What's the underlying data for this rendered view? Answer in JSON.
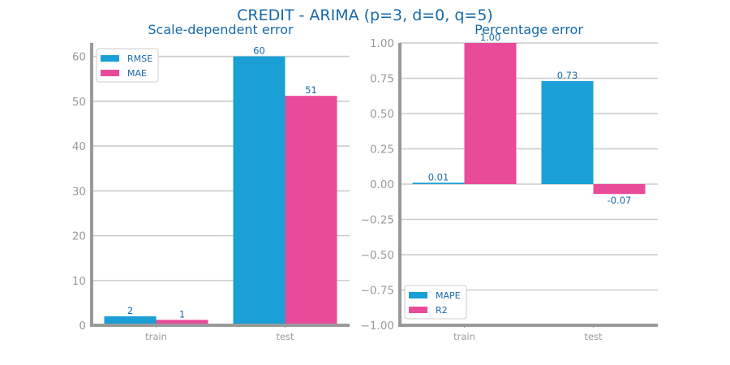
{
  "figure": {
    "title": "CREDIT - ARIMA (p=3, d=0, q=5)"
  },
  "colors": {
    "title": "#1769aa",
    "axis_spine": "#999999",
    "grid": "#cccccc",
    "tick_text": "#999999",
    "bar_label": "#1769aa",
    "series_blue": "#1a9fd6",
    "series_pink": "#ea4a9a"
  },
  "chart_data": [
    {
      "type": "bar",
      "title": "Scale-dependent error",
      "categories": [
        "train",
        "test"
      ],
      "series": [
        {
          "name": "RMSE",
          "values": [
            2.0,
            60.0
          ],
          "labels": [
            "2",
            "60"
          ],
          "color_key": "series_blue"
        },
        {
          "name": "MAE",
          "values": [
            1.2,
            51.2
          ],
          "labels": [
            "1",
            "51"
          ],
          "color_key": "series_pink"
        }
      ],
      "ylim": [
        0,
        63
      ],
      "yticks": [
        0,
        10,
        20,
        30,
        40,
        50,
        60
      ],
      "ytick_labels": [
        "0",
        "10",
        "20",
        "30",
        "40",
        "50",
        "60"
      ],
      "grid": true,
      "legend": "top-left"
    },
    {
      "type": "bar",
      "title": "Percentage error",
      "categories": [
        "train",
        "test"
      ],
      "series": [
        {
          "name": "MAPE",
          "values": [
            0.01,
            0.73
          ],
          "labels": [
            "0.01",
            "0.73"
          ],
          "color_key": "series_blue"
        },
        {
          "name": "R2",
          "values": [
            1.0,
            -0.07
          ],
          "labels": [
            "1.00",
            "-0.07"
          ],
          "color_key": "series_pink"
        }
      ],
      "ylim": [
        -1.0,
        1.0
      ],
      "yticks": [
        -1.0,
        -0.75,
        -0.5,
        -0.25,
        0.0,
        0.25,
        0.5,
        0.75,
        1.0
      ],
      "ytick_labels": [
        "−1.00",
        "−0.75",
        "−0.50",
        "−0.25",
        "0.00",
        "0.25",
        "0.50",
        "0.75",
        "1.00"
      ],
      "grid": true,
      "legend": "bottom-left"
    }
  ]
}
